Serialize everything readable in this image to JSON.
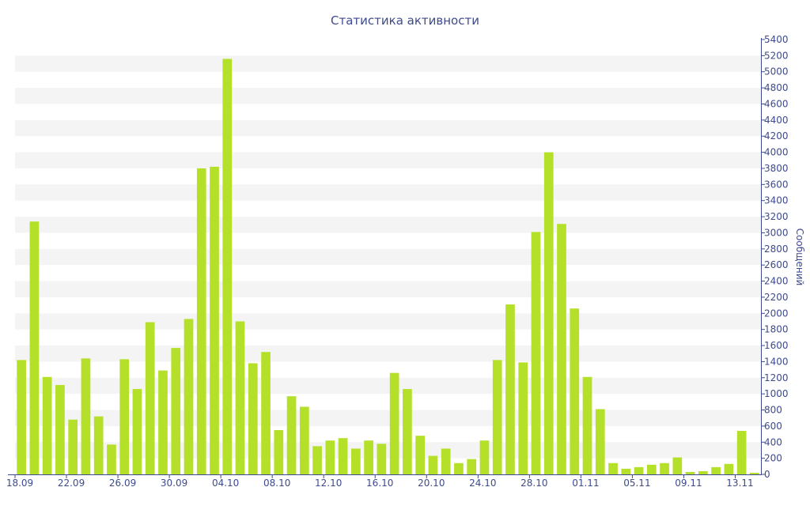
{
  "chart_data": {
    "type": "bar",
    "title": "Статистика активности",
    "ylabel": "Сообщений",
    "xlabel": "",
    "ylim": [
      0,
      5400
    ],
    "y_ticks": [
      0,
      200,
      400,
      600,
      800,
      1000,
      1200,
      1400,
      1600,
      1800,
      2000,
      2200,
      2400,
      2600,
      2800,
      3000,
      3200,
      3400,
      3600,
      3800,
      4000,
      4200,
      4400,
      4600,
      4800,
      5000,
      5200,
      5400
    ],
    "y_axis_side": "right",
    "grid": "horizontal bands",
    "legend": "none",
    "bar_color": "#b5e02a",
    "axis_color": "#3d4a8f",
    "band_color": "#f4f4f4",
    "x_tick_labels": [
      "18.09",
      "22.09",
      "26.09",
      "30.09",
      "04.10",
      "08.10",
      "12.10",
      "16.10",
      "20.10",
      "24.10",
      "28.10",
      "01.11",
      "05.11",
      "09.11",
      "13.11"
    ],
    "x_tick_label_step": 4,
    "categories": [
      "18.09",
      "19.09",
      "20.09",
      "21.09",
      "22.09",
      "23.09",
      "24.09",
      "25.09",
      "26.09",
      "27.09",
      "28.09",
      "29.09",
      "30.09",
      "01.10",
      "02.10",
      "03.10",
      "04.10",
      "05.10",
      "06.10",
      "07.10",
      "08.10",
      "09.10",
      "10.10",
      "11.10",
      "12.10",
      "13.10",
      "14.10",
      "15.10",
      "16.10",
      "17.10",
      "18.10",
      "19.10",
      "20.10",
      "21.10",
      "22.10",
      "23.10",
      "24.10",
      "25.10",
      "26.10",
      "27.10",
      "28.10",
      "29.10",
      "30.10",
      "31.10",
      "01.11",
      "02.11",
      "03.11",
      "04.11",
      "05.11",
      "06.11",
      "07.11",
      "08.11",
      "09.11",
      "10.11",
      "11.11",
      "12.11",
      "13.11",
      "14.11"
    ],
    "values": [
      1420,
      3140,
      1210,
      1110,
      680,
      1440,
      720,
      370,
      1430,
      1060,
      1890,
      1290,
      1570,
      1930,
      3800,
      3820,
      5160,
      1900,
      1380,
      1520,
      550,
      970,
      840,
      350,
      420,
      450,
      320,
      420,
      380,
      1260,
      1060,
      480,
      230,
      320,
      140,
      190,
      420,
      1420,
      2110,
      1390,
      3010,
      4000,
      3110,
      2060,
      1210,
      810,
      140,
      70,
      90,
      120,
      140,
      210,
      30,
      40,
      90,
      130,
      540,
      20
    ]
  }
}
